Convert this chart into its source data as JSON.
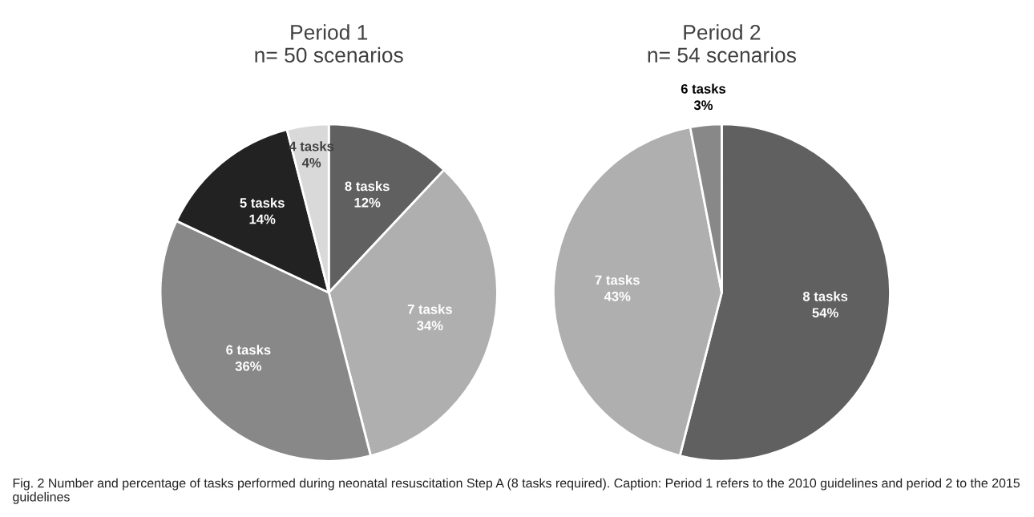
{
  "chart_data": [
    {
      "type": "pie",
      "title": "Period 1\nn= 50 scenarios",
      "categories": [
        "8 tasks",
        "7 tasks",
        "6 tasks",
        "5 tasks",
        "4 tasks"
      ],
      "values": [
        12,
        34,
        36,
        14,
        4
      ],
      "colors": [
        "#606060",
        "#afafaf",
        "#888888",
        "#222222",
        "#d9d9d9"
      ],
      "value_labels": [
        "12%",
        "34%",
        "36%",
        "14%",
        "4%"
      ],
      "legend": false,
      "annotations": [
        "Fig. 2 Number and percentage of tasks performed during neonatal resuscitation Step A (8 tasks required). Caption: Period 1 refers to the 2010 guidelines and period 2 to the 2015 guidelines"
      ]
    },
    {
      "type": "pie",
      "title": "Period 2\nn= 54 scenarios",
      "categories": [
        "8 tasks",
        "7 tasks",
        "6 tasks"
      ],
      "values": [
        54,
        43,
        3
      ],
      "colors": [
        "#606060",
        "#afafaf",
        "#888888"
      ],
      "value_labels": [
        "54%",
        "43%",
        "3%"
      ],
      "legend": false
    }
  ]
}
